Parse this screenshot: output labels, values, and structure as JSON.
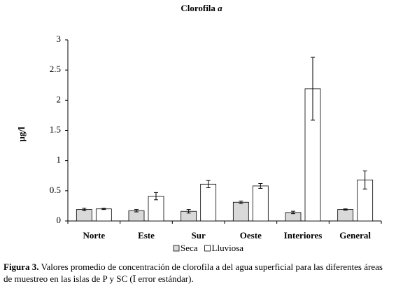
{
  "chart_data": {
    "type": "bar",
    "title": "Clorofila",
    "title_emphasis": "a",
    "ylabel": "µg/l",
    "categories": [
      "Norte",
      "Este",
      "Sur",
      "Oeste",
      "Interiores",
      "General"
    ],
    "series": [
      {
        "name": "Seca",
        "color": "#d9d9d9",
        "values": [
          0.19,
          0.17,
          0.16,
          0.31,
          0.14,
          0.19
        ],
        "errors": [
          0.02,
          0.02,
          0.03,
          0.02,
          0.02,
          0.01
        ]
      },
      {
        "name": "Lluviosa",
        "color": "#ffffff",
        "values": [
          0.2,
          0.41,
          0.61,
          0.58,
          2.19,
          0.68
        ],
        "errors": [
          0.01,
          0.06,
          0.06,
          0.04,
          0.52,
          0.15
        ]
      }
    ],
    "ylim": [
      0,
      3
    ],
    "yticks": [
      0,
      0.5,
      1,
      1.5,
      2,
      2.5,
      3
    ],
    "grid": false,
    "caption_label": "Figura 3.",
    "caption_lines": [
      "Valores promedio de concentración de clorofila a del agua superficial para las diferentes áreas",
      "de muestreo en las islas de P y SC (Ī error estándar)."
    ]
  }
}
